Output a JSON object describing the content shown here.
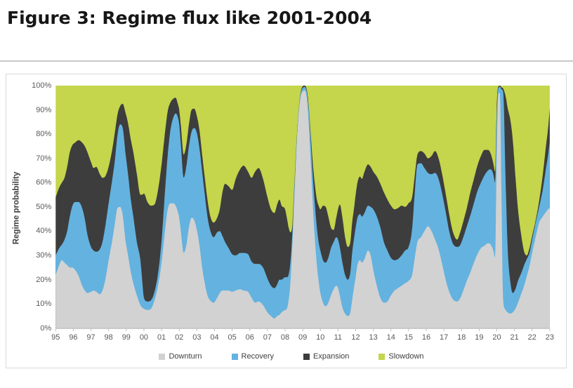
{
  "figure_title": "Figure 3: Regime flux like 2001-2004",
  "chart_data": {
    "type": "area",
    "subtype": "stacked-100pct",
    "ylabel": "Regime probability",
    "xlabel": "",
    "x_range": [
      1995,
      2023
    ],
    "y_range": [
      0,
      100
    ],
    "grid": false,
    "legend_position": "bottom",
    "x_tick_labels": [
      "95",
      "96",
      "97",
      "98",
      "99",
      "00",
      "01",
      "02",
      "03",
      "04",
      "05",
      "06",
      "07",
      "08",
      "09",
      "10",
      "11",
      "12",
      "13",
      "14",
      "15",
      "16",
      "17",
      "18",
      "19",
      "20",
      "21",
      "22",
      "23"
    ],
    "y_tick_labels": [
      "100%",
      "90%",
      "80%",
      "70%",
      "60%",
      "50%",
      "40%",
      "30%",
      "20%",
      "10%",
      "0%"
    ],
    "series_names": [
      "Downturn",
      "Recovery",
      "Expansion",
      "Slowdown"
    ],
    "colors": {
      "downturn": "#d2d2d2",
      "recovery": "#64b2df",
      "expansion": "#3d3d3d",
      "slowdown": "#c5d54c"
    },
    "columns": [
      "year",
      "downturn_pct",
      "recovery_pct",
      "expansion_pct",
      "slowdown_pct"
    ],
    "points": [
      [
        1995,
        22,
        8,
        24,
        46
      ],
      [
        1995.2,
        26,
        7,
        25,
        42
      ],
      [
        1995.35,
        28,
        6.5,
        25.5,
        40
      ],
      [
        1995.5,
        27,
        9.5,
        25.5,
        38
      ],
      [
        1995.65,
        26,
        14,
        26.5,
        33.5
      ],
      [
        1995.8,
        25,
        21,
        26.5,
        27.5
      ],
      [
        1995.95,
        25,
        25.5,
        25,
        24.5
      ],
      [
        1996.1,
        24,
        28,
        24.5,
        23.5
      ],
      [
        1996.3,
        21.5,
        30.5,
        25.5,
        22.5
      ],
      [
        1996.5,
        17.5,
        32,
        27,
        23.5
      ],
      [
        1996.65,
        15.5,
        29.5,
        30,
        25
      ],
      [
        1996.8,
        14.5,
        24,
        34,
        27.5
      ],
      [
        1997,
        15,
        18.5,
        35,
        31.5
      ],
      [
        1997.15,
        15.5,
        16.5,
        34,
        34
      ],
      [
        1997.3,
        15,
        16.5,
        35,
        33.5
      ],
      [
        1997.5,
        14,
        18.5,
        31,
        36.5
      ],
      [
        1997.65,
        15.5,
        20,
        26.5,
        38
      ],
      [
        1997.8,
        19.5,
        22,
        21,
        37.5
      ],
      [
        1998,
        28,
        23.5,
        15,
        33.5
      ],
      [
        1998.2,
        36,
        25,
        12.5,
        26.5
      ],
      [
        1998.35,
        43,
        26,
        11.5,
        19.5
      ],
      [
        1998.5,
        49.5,
        30,
        8.5,
        12
      ],
      [
        1998.65,
        50,
        34,
        7.5,
        8.5
      ],
      [
        1998.8,
        46.5,
        36,
        10,
        7.5
      ],
      [
        1998.95,
        36.5,
        36,
        16.5,
        11
      ],
      [
        1999.1,
        30,
        33.5,
        21,
        15.5
      ],
      [
        1999.25,
        23.5,
        30,
        24.5,
        22
      ],
      [
        1999.4,
        18.5,
        27.5,
        26.5,
        27.5
      ],
      [
        1999.6,
        13.5,
        22,
        28,
        36.5
      ],
      [
        1999.8,
        9.5,
        18.5,
        27,
        45
      ],
      [
        1999.9,
        8.5,
        11.5,
        35,
        45
      ],
      [
        2000,
        8,
        4.5,
        43,
        44.5
      ],
      [
        2000.2,
        7.5,
        3.5,
        41,
        48
      ],
      [
        2000.4,
        8,
        3.5,
        39,
        49.5
      ],
      [
        2000.6,
        11.5,
        3.5,
        36,
        49
      ],
      [
        2000.8,
        17.5,
        5,
        34.5,
        43
      ],
      [
        2001,
        27,
        9,
        31.5,
        32.5
      ],
      [
        2001.2,
        40.5,
        16.5,
        24,
        19
      ],
      [
        2001.35,
        49,
        22.5,
        18,
        10.5
      ],
      [
        2001.5,
        51.5,
        30,
        11.5,
        7
      ],
      [
        2001.65,
        51.5,
        35,
        8,
        5.5
      ],
      [
        2001.8,
        50.5,
        38,
        6.5,
        5
      ],
      [
        2001.9,
        48.5,
        39,
        5.5,
        7
      ],
      [
        2002,
        45.5,
        38.5,
        6,
        10
      ],
      [
        2002.1,
        39.5,
        35.5,
        8,
        17
      ],
      [
        2002.25,
        31,
        31,
        9.5,
        28.5
      ],
      [
        2002.4,
        34,
        32.5,
        9,
        24.5
      ],
      [
        2002.55,
        41.5,
        33.5,
        9,
        16
      ],
      [
        2002.7,
        45.5,
        35.5,
        9,
        10
      ],
      [
        2002.85,
        44.5,
        38,
        8,
        9.5
      ],
      [
        2003,
        40.5,
        40,
        7,
        12.5
      ],
      [
        2003.15,
        34,
        40,
        7.5,
        18.5
      ],
      [
        2003.3,
        25,
        39.5,
        7,
        28.5
      ],
      [
        2003.45,
        18.5,
        36.5,
        7,
        38
      ],
      [
        2003.6,
        13.5,
        32.5,
        7,
        47
      ],
      [
        2003.75,
        11.5,
        29,
        6,
        53.5
      ],
      [
        2003.95,
        10.5,
        27,
        6,
        56.5
      ],
      [
        2004.15,
        12.5,
        27,
        6,
        54.5
      ],
      [
        2004.3,
        14.5,
        25.5,
        9,
        51
      ],
      [
        2004.45,
        15.5,
        22.5,
        18,
        44
      ],
      [
        2004.6,
        15.5,
        20,
        24,
        40.5
      ],
      [
        2004.8,
        15.5,
        17.5,
        25.5,
        41.5
      ],
      [
        2005,
        15,
        15.5,
        26.5,
        43
      ],
      [
        2005.2,
        15.5,
        14.5,
        31.5,
        38.5
      ],
      [
        2005.45,
        16,
        15,
        34.5,
        34.5
      ],
      [
        2005.65,
        15.5,
        15.5,
        36,
        33
      ],
      [
        2005.9,
        15,
        15.5,
        34,
        35.5
      ],
      [
        2006.1,
        12.5,
        15,
        34.5,
        38
      ],
      [
        2006.3,
        10.5,
        16,
        38,
        35.5
      ],
      [
        2006.5,
        11,
        15.5,
        39.5,
        34
      ],
      [
        2006.75,
        9.5,
        15.5,
        36.5,
        38.5
      ],
      [
        2007,
        6.5,
        14,
        33.5,
        46
      ],
      [
        2007.2,
        5,
        12.5,
        31.5,
        51
      ],
      [
        2007.4,
        4,
        12.5,
        31,
        52.5
      ],
      [
        2007.55,
        5,
        13,
        33,
        49
      ],
      [
        2007.68,
        5.5,
        14.5,
        33,
        47
      ],
      [
        2007.8,
        6.5,
        13.5,
        30.5,
        49.5
      ],
      [
        2008,
        7.5,
        13.5,
        28,
        51
      ],
      [
        2008.1,
        8,
        13,
        24.5,
        54.5
      ],
      [
        2008.2,
        11.5,
        10.5,
        19.5,
        58.5
      ],
      [
        2008.3,
        18.5,
        8.5,
        12.5,
        60.5
      ],
      [
        2008.4,
        32,
        5.5,
        4,
        58.5
      ],
      [
        2008.5,
        49,
        4,
        2,
        45
      ],
      [
        2008.6,
        66.5,
        3,
        1,
        29.5
      ],
      [
        2008.7,
        81,
        1.5,
        0.5,
        17
      ],
      [
        2008.8,
        91,
        1,
        0.5,
        7.5
      ],
      [
        2008.9,
        96,
        1.2,
        0.6,
        2.2
      ],
      [
        2009,
        97.6,
        1.4,
        0.7,
        0.3
      ],
      [
        2009.1,
        98,
        1.45,
        0.55,
        0
      ],
      [
        2009.2,
        96.5,
        1.8,
        0.8,
        0.9
      ],
      [
        2009.3,
        89,
        4.5,
        1.2,
        5.3
      ],
      [
        2009.4,
        76,
        8,
        1.5,
        14.5
      ],
      [
        2009.5,
        61.5,
        9.5,
        4,
        25
      ],
      [
        2009.6,
        47,
        12.5,
        6,
        34.5
      ],
      [
        2009.7,
        35.5,
        14.5,
        8.5,
        41.5
      ],
      [
        2009.8,
        26,
        15.5,
        11.5,
        47
      ],
      [
        2009.9,
        19.5,
        16,
        15,
        49.5
      ],
      [
        2010,
        14.5,
        17.5,
        17,
        51
      ],
      [
        2010.15,
        10.5,
        17.5,
        22.5,
        49.5
      ],
      [
        2010.3,
        9,
        18,
        23,
        50
      ],
      [
        2010.45,
        10.5,
        18.5,
        17,
        54
      ],
      [
        2010.6,
        13.5,
        19.5,
        8.5,
        58.5
      ],
      [
        2010.75,
        16,
        19.5,
        5,
        59.5
      ],
      [
        2010.9,
        17.5,
        20,
        8,
        54.5
      ],
      [
        2011,
        16.5,
        20,
        12.5,
        51
      ],
      [
        2011.1,
        13.5,
        20,
        17.5,
        49
      ],
      [
        2011.25,
        8.5,
        18.5,
        18.5,
        54.5
      ],
      [
        2011.4,
        6,
        16,
        15.5,
        62.5
      ],
      [
        2011.55,
        5,
        15,
        13.5,
        66.5
      ],
      [
        2011.7,
        6.5,
        16.5,
        12.5,
        64.5
      ],
      [
        2011.8,
        11.5,
        19.5,
        12.5,
        56.5
      ],
      [
        2011.9,
        16.5,
        20,
        12.5,
        51
      ],
      [
        2012,
        21,
        20.5,
        13.5,
        45
      ],
      [
        2012.1,
        26,
        19.5,
        14.5,
        40
      ],
      [
        2012.25,
        28,
        19,
        15.5,
        37.5
      ],
      [
        2012.35,
        27,
        19,
        15.5,
        38.5
      ],
      [
        2012.5,
        28.5,
        19,
        17,
        35.5
      ],
      [
        2012.7,
        32,
        18.5,
        17,
        32.5
      ],
      [
        2012.85,
        30,
        20,
        16.5,
        33.5
      ],
      [
        2013,
        24,
        25,
        15.5,
        35.5
      ],
      [
        2013.2,
        17.5,
        28.5,
        16.5,
        37.5
      ],
      [
        2013.4,
        12.5,
        29,
        18,
        40.5
      ],
      [
        2013.6,
        10.5,
        25,
        20.5,
        44
      ],
      [
        2013.8,
        11,
        21,
        21,
        47
      ],
      [
        2014,
        13.5,
        15.5,
        21.5,
        49.5
      ],
      [
        2014.2,
        15.5,
        12.5,
        21,
        51
      ],
      [
        2014.4,
        16.5,
        12,
        21,
        50.5
      ],
      [
        2014.6,
        17.5,
        12.5,
        20.5,
        49.5
      ],
      [
        2014.8,
        18.5,
        13.5,
        18,
        50
      ],
      [
        2015,
        19.5,
        14,
        18,
        48.5
      ],
      [
        2015.2,
        22,
        19,
        13,
        46
      ],
      [
        2015.35,
        29,
        27,
        7,
        37
      ],
      [
        2015.5,
        35.5,
        32,
        4,
        28.5
      ],
      [
        2015.7,
        37.5,
        30.5,
        5,
        27
      ],
      [
        2015.9,
        40,
        26,
        6,
        28
      ],
      [
        2016.1,
        42,
        22,
        6,
        30
      ],
      [
        2016.3,
        40,
        23.5,
        7.5,
        29
      ],
      [
        2016.5,
        36.5,
        27.5,
        9,
        27
      ],
      [
        2016.7,
        32.5,
        29,
        8.5,
        30
      ],
      [
        2016.9,
        26.5,
        29,
        8,
        36.5
      ],
      [
        2017.1,
        20,
        28,
        7.5,
        44.5
      ],
      [
        2017.3,
        15,
        25,
        7,
        53
      ],
      [
        2017.5,
        12,
        23,
        5,
        60
      ],
      [
        2017.75,
        11,
        22.5,
        3,
        63.5
      ],
      [
        2017.9,
        12,
        22,
        5,
        61
      ],
      [
        2018.1,
        15.5,
        22,
        6.5,
        56
      ],
      [
        2018.3,
        19.5,
        22.5,
        7.5,
        50.5
      ],
      [
        2018.5,
        23,
        23.5,
        9.5,
        44
      ],
      [
        2018.7,
        27,
        24.5,
        10,
        38.5
      ],
      [
        2018.9,
        30.5,
        26,
        10.5,
        33
      ],
      [
        2019.1,
        33,
        27,
        11,
        29
      ],
      [
        2019.3,
        34,
        29,
        10.5,
        26.5
      ],
      [
        2019.5,
        35,
        30,
        8.5,
        26.5
      ],
      [
        2019.65,
        34.5,
        31,
        6.5,
        28
      ],
      [
        2019.8,
        32,
        31.5,
        4.5,
        32
      ],
      [
        2019.9,
        29,
        31,
        4.5,
        35.5
      ],
      [
        2020,
        75,
        14,
        4,
        7
      ],
      [
        2020.08,
        96.5,
        2.3,
        0.7,
        0.5
      ],
      [
        2020.18,
        97,
        2.5,
        0.5,
        0
      ],
      [
        2020.26,
        55,
        43.5,
        0.8,
        0.7
      ],
      [
        2020.36,
        11,
        86.5,
        1.3,
        1.2
      ],
      [
        2020.5,
        7.5,
        52.5,
        35.5,
        4.5
      ],
      [
        2020.62,
        6.5,
        25.5,
        58.5,
        9.5
      ],
      [
        2020.75,
        6,
        14,
        66.5,
        13.5
      ],
      [
        2020.9,
        6.5,
        8,
        63.5,
        22
      ],
      [
        2021.05,
        8,
        8,
        47,
        37
      ],
      [
        2021.2,
        10.5,
        9,
        29.5,
        51
      ],
      [
        2021.4,
        14.5,
        8.5,
        14.5,
        62.5
      ],
      [
        2021.55,
        17.5,
        8.5,
        5.5,
        68.5
      ],
      [
        2021.7,
        21.5,
        7,
        1.5,
        70
      ],
      [
        2021.85,
        25.5,
        5.5,
        2,
        67
      ],
      [
        2022,
        31,
        5.5,
        1.5,
        62
      ],
      [
        2022.2,
        37.5,
        6,
        1,
        55.5
      ],
      [
        2022.4,
        43.5,
        6.5,
        2.5,
        47.5
      ],
      [
        2022.6,
        46,
        11,
        6,
        37
      ],
      [
        2022.8,
        48,
        18.5,
        9.5,
        24
      ],
      [
        2022.9,
        49,
        22,
        11,
        18
      ],
      [
        2023,
        49.5,
        27.5,
        13.5,
        9.5
      ]
    ]
  }
}
